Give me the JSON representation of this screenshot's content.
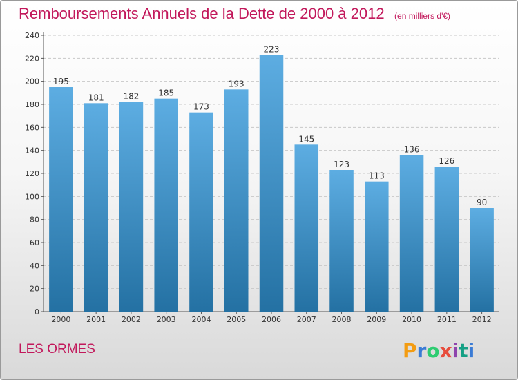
{
  "header": {
    "title": "Remboursements Annuels de la Dette de 2000 à 2012",
    "unit": "(en milliers d'€)"
  },
  "footer": {
    "commune": "LES ORMES",
    "brand": "Proxiti",
    "brand_letter_colors": [
      "#f39c12",
      "#3a7bd5",
      "#2ecc71",
      "#e74c3c",
      "#8e44ad",
      "#16a085",
      "#3a7bd5"
    ]
  },
  "chart_data": {
    "type": "bar",
    "categories": [
      "2000",
      "2001",
      "2002",
      "2003",
      "2004",
      "2005",
      "2006",
      "2007",
      "2008",
      "2009",
      "2010",
      "2011",
      "2012"
    ],
    "values": [
      195,
      181,
      182,
      185,
      173,
      193,
      223,
      145,
      123,
      113,
      136,
      126,
      90
    ],
    "title": "Remboursements Annuels de la Dette de 2000 à 2012",
    "subtitle": "(en milliers d'€)",
    "ylim": [
      0,
      240
    ],
    "yticks": [
      0,
      20,
      40,
      60,
      80,
      100,
      120,
      140,
      160,
      180,
      200,
      220,
      240
    ],
    "grid": true,
    "bar_color_top": "#5dade2",
    "bar_color_bottom": "#2471a3"
  }
}
